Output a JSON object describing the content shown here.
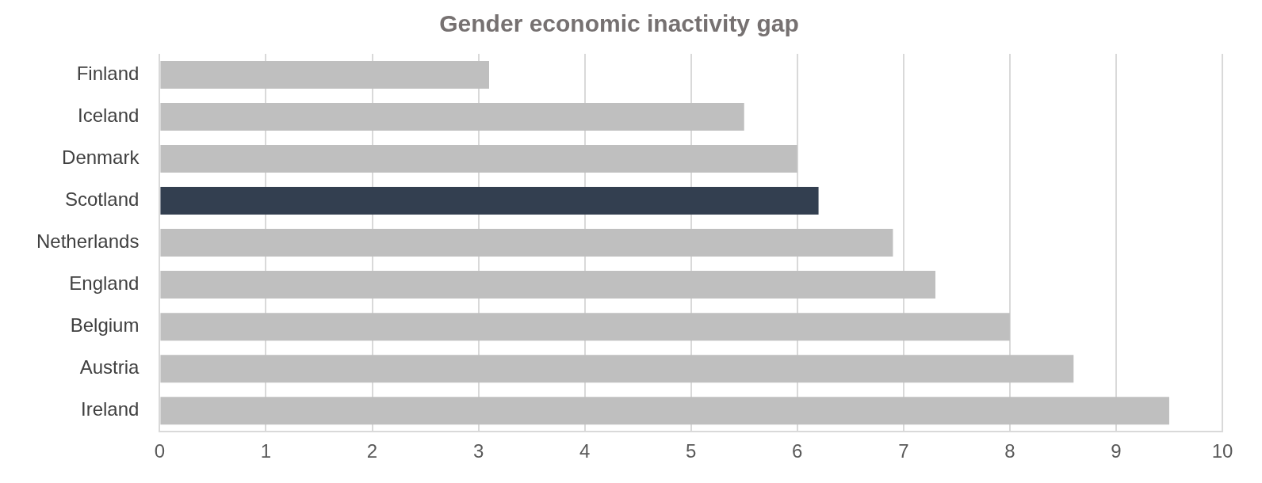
{
  "chart_data": {
    "type": "bar",
    "orientation": "horizontal",
    "title": "Gender economic inactivity gap",
    "categories": [
      "Finland",
      "Iceland",
      "Denmark",
      "Scotland",
      "Netherlands",
      "England",
      "Belgium",
      "Austria",
      "Ireland"
    ],
    "values": [
      3.1,
      5.5,
      6.0,
      6.2,
      6.9,
      7.3,
      8.0,
      8.6,
      9.5
    ],
    "colors": [
      "#bfbfbf",
      "#bfbfbf",
      "#bfbfbf",
      "#333f50",
      "#bfbfbf",
      "#bfbfbf",
      "#bfbfbf",
      "#bfbfbf",
      "#bfbfbf"
    ],
    "xlim": [
      0,
      10
    ],
    "xticks": [
      0,
      1,
      2,
      3,
      4,
      5,
      6,
      7,
      8,
      9,
      10
    ],
    "grid": true
  }
}
